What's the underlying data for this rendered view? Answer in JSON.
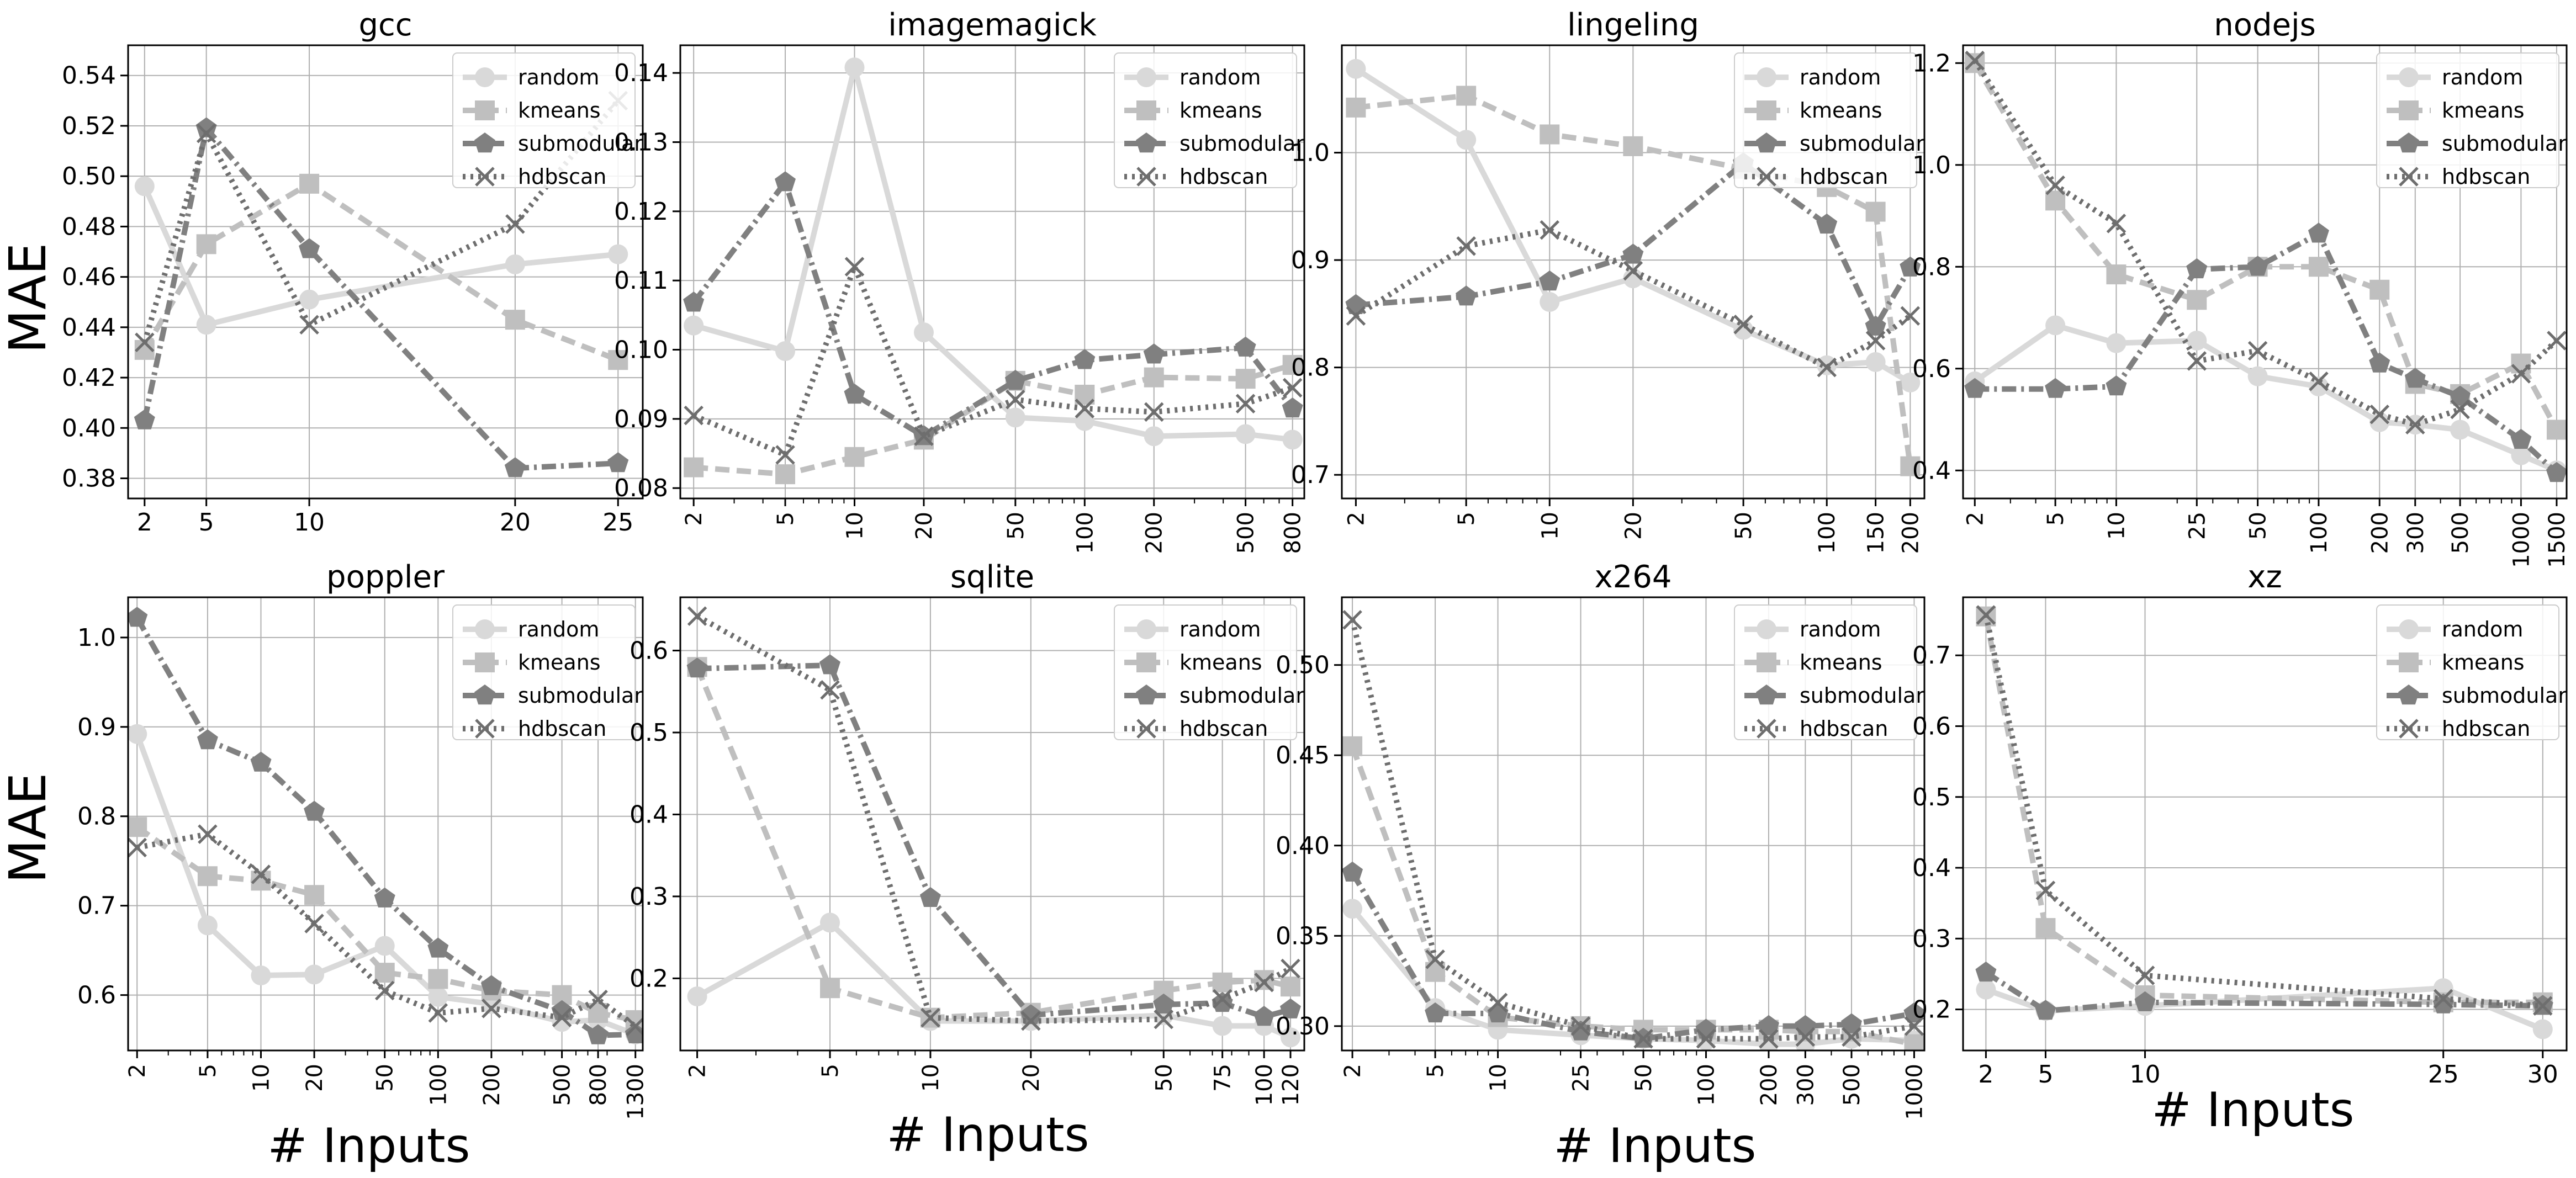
{
  "figure": {
    "ylabel": "MAE",
    "xlabel": "# Inputs"
  },
  "chart_data": [
    {
      "type": "line",
      "title": "gcc",
      "xscale": "linear",
      "xlim": [
        1.2,
        26.2
      ],
      "ylim": [
        0.372,
        0.552
      ],
      "xticks": [
        2,
        5,
        10,
        20,
        25
      ],
      "xtick_rotation": 0,
      "yticks": [
        0.38,
        0.4,
        0.42,
        0.44,
        0.46,
        0.48,
        0.5,
        0.52,
        0.54
      ],
      "ytick_decimals": 2,
      "grid": true,
      "legend": "top-right",
      "series": [
        {
          "name": "random",
          "x": [
            2,
            5,
            10,
            20,
            25
          ],
          "y": [
            0.496,
            0.441,
            0.451,
            0.465,
            0.469
          ]
        },
        {
          "name": "kmeans",
          "x": [
            2,
            5,
            10,
            20,
            25
          ],
          "y": [
            0.431,
            0.473,
            0.497,
            0.443,
            0.427
          ]
        },
        {
          "name": "submodular",
          "x": [
            2,
            5,
            10,
            20,
            25
          ],
          "y": [
            0.403,
            0.519,
            0.471,
            0.384,
            0.386
          ]
        },
        {
          "name": "hdbscan",
          "x": [
            2,
            5,
            10,
            20,
            25
          ],
          "y": [
            0.434,
            0.517,
            0.441,
            0.481,
            0.53
          ]
        }
      ]
    },
    {
      "type": "line",
      "title": "imagemagick",
      "xscale": "log",
      "xlim": [
        1.75,
        900
      ],
      "ylim": [
        0.0785,
        0.144
      ],
      "xticks": [
        2,
        5,
        10,
        20,
        50,
        100,
        200,
        500,
        800
      ],
      "xtick_rotation": -90,
      "yticks": [
        0.08,
        0.09,
        0.1,
        0.11,
        0.12,
        0.13,
        0.14
      ],
      "ytick_decimals": 2,
      "grid": true,
      "legend": "top-right",
      "series": [
        {
          "name": "random",
          "x": [
            2,
            5,
            10,
            20,
            50,
            100,
            200,
            500,
            800
          ],
          "y": [
            0.1035,
            0.0998,
            0.1408,
            0.1025,
            0.0902,
            0.0897,
            0.0875,
            0.0878,
            0.087
          ]
        },
        {
          "name": "kmeans",
          "x": [
            2,
            5,
            10,
            20,
            50,
            100,
            200,
            500,
            800
          ],
          "y": [
            0.083,
            0.082,
            0.0845,
            0.087,
            0.0955,
            0.0935,
            0.096,
            0.0958,
            0.0978
          ]
        },
        {
          "name": "submodular",
          "x": [
            2,
            5,
            10,
            20,
            50,
            100,
            200,
            500,
            800
          ],
          "y": [
            0.1068,
            0.1242,
            0.0935,
            0.0875,
            0.0955,
            0.0985,
            0.0993,
            0.1003,
            0.0915
          ]
        },
        {
          "name": "hdbscan",
          "x": [
            2,
            5,
            10,
            20,
            50,
            100,
            200,
            500,
            800
          ],
          "y": [
            0.0905,
            0.0848,
            0.112,
            0.0875,
            0.0928,
            0.0915,
            0.091,
            0.0922,
            0.0945
          ]
        }
      ]
    },
    {
      "type": "line",
      "title": "lingeling",
      "xscale": "log",
      "xlim": [
        1.78,
        225
      ],
      "ylim": [
        0.678,
        1.1
      ],
      "xticks": [
        2,
        5,
        10,
        20,
        50,
        100,
        150,
        200
      ],
      "xtick_rotation": -90,
      "yticks": [
        0.7,
        0.8,
        0.9,
        1.0
      ],
      "ytick_decimals": 1,
      "grid": true,
      "legend": "top-right",
      "series": [
        {
          "name": "random",
          "x": [
            2,
            5,
            10,
            20,
            50,
            100,
            150,
            200
          ],
          "y": [
            1.078,
            1.012,
            0.861,
            0.883,
            0.835,
            0.802,
            0.805,
            0.786
          ]
        },
        {
          "name": "kmeans",
          "x": [
            2,
            5,
            10,
            20,
            50,
            100,
            150,
            200
          ],
          "y": [
            1.042,
            1.053,
            1.017,
            1.006,
            0.985,
            0.968,
            0.945,
            0.708
          ]
        },
        {
          "name": "submodular",
          "x": [
            2,
            5,
            10,
            20,
            50,
            100,
            150,
            200
          ],
          "y": [
            0.858,
            0.866,
            0.88,
            0.905,
            0.99,
            0.933,
            0.838,
            0.893
          ]
        },
        {
          "name": "hdbscan",
          "x": [
            2,
            5,
            10,
            20,
            50,
            100,
            150,
            200
          ],
          "y": [
            0.848,
            0.913,
            0.928,
            0.89,
            0.84,
            0.8,
            0.825,
            0.848
          ]
        }
      ]
    },
    {
      "type": "line",
      "title": "nodejs",
      "xscale": "log",
      "xlim": [
        1.75,
        1680
      ],
      "ylim": [
        0.345,
        1.235
      ],
      "xticks": [
        2,
        5,
        10,
        25,
        50,
        100,
        200,
        300,
        500,
        1000,
        1500
      ],
      "xtick_rotation": -90,
      "yticks": [
        0.4,
        0.6,
        0.8,
        1.0,
        1.2
      ],
      "ytick_decimals": 1,
      "grid": true,
      "legend": "top-right",
      "series": [
        {
          "name": "random",
          "x": [
            2,
            5,
            10,
            25,
            50,
            100,
            200,
            300,
            500,
            1000,
            1500
          ],
          "y": [
            0.575,
            0.685,
            0.65,
            0.655,
            0.585,
            0.565,
            0.495,
            0.49,
            0.48,
            0.43,
            0.4
          ]
        },
        {
          "name": "kmeans",
          "x": [
            2,
            5,
            10,
            25,
            50,
            100,
            200,
            300,
            500,
            1000,
            1500
          ],
          "y": [
            1.2,
            0.93,
            0.785,
            0.735,
            0.8,
            0.8,
            0.755,
            0.57,
            0.55,
            0.61,
            0.48
          ]
        },
        {
          "name": "submodular",
          "x": [
            2,
            5,
            10,
            25,
            50,
            100,
            200,
            300,
            500,
            1000,
            1500
          ],
          "y": [
            0.56,
            0.56,
            0.565,
            0.795,
            0.8,
            0.865,
            0.61,
            0.58,
            0.545,
            0.46,
            0.395
          ]
        },
        {
          "name": "hdbscan",
          "x": [
            2,
            5,
            10,
            25,
            50,
            100,
            200,
            300,
            500,
            1000,
            1500
          ],
          "y": [
            1.205,
            0.96,
            0.885,
            0.615,
            0.635,
            0.575,
            0.51,
            0.49,
            0.52,
            0.59,
            0.655
          ]
        }
      ]
    },
    {
      "type": "line",
      "title": "poppler",
      "xscale": "log",
      "xlim": [
        1.78,
        1430
      ],
      "ylim": [
        0.538,
        1.045
      ],
      "xticks": [
        2,
        5,
        10,
        20,
        50,
        100,
        200,
        500,
        800,
        1300
      ],
      "xtick_rotation": -90,
      "yticks": [
        0.6,
        0.7,
        0.8,
        0.9,
        1.0
      ],
      "ytick_decimals": 1,
      "grid": true,
      "legend": "top-right",
      "series": [
        {
          "name": "random",
          "x": [
            2,
            5,
            10,
            20,
            50,
            100,
            200,
            500,
            800,
            1300
          ],
          "y": [
            0.892,
            0.678,
            0.622,
            0.623,
            0.655,
            0.598,
            0.59,
            0.57,
            0.572,
            0.556
          ]
        },
        {
          "name": "kmeans",
          "x": [
            2,
            5,
            10,
            20,
            50,
            100,
            200,
            500,
            800,
            1300
          ],
          "y": [
            0.788,
            0.733,
            0.728,
            0.712,
            0.625,
            0.618,
            0.605,
            0.6,
            0.58,
            0.572
          ]
        },
        {
          "name": "submodular",
          "x": [
            2,
            5,
            10,
            20,
            50,
            100,
            200,
            500,
            800,
            1300
          ],
          "y": [
            1.022,
            0.885,
            0.86,
            0.805,
            0.708,
            0.652,
            0.61,
            0.582,
            0.555,
            0.556
          ]
        },
        {
          "name": "hdbscan",
          "x": [
            2,
            5,
            10,
            20,
            50,
            100,
            200,
            500,
            800,
            1300
          ],
          "y": [
            0.765,
            0.78,
            0.735,
            0.68,
            0.605,
            0.58,
            0.585,
            0.575,
            0.595,
            0.565
          ]
        }
      ]
    },
    {
      "type": "line",
      "title": "sqlite",
      "xscale": "log",
      "xlim": [
        1.78,
        132
      ],
      "ylim": [
        0.112,
        0.665
      ],
      "xticks": [
        2,
        5,
        10,
        20,
        50,
        75,
        100,
        120
      ],
      "xtick_rotation": -90,
      "yticks": [
        0.2,
        0.3,
        0.4,
        0.5,
        0.6
      ],
      "ytick_decimals": 1,
      "grid": true,
      "legend": "top-right",
      "series": [
        {
          "name": "random",
          "x": [
            2,
            5,
            10,
            20,
            50,
            75,
            100,
            120
          ],
          "y": [
            0.178,
            0.268,
            0.148,
            0.148,
            0.155,
            0.142,
            0.142,
            0.128
          ]
        },
        {
          "name": "kmeans",
          "x": [
            2,
            5,
            10,
            20,
            50,
            75,
            100,
            120
          ],
          "y": [
            0.58,
            0.188,
            0.152,
            0.158,
            0.185,
            0.195,
            0.198,
            0.19
          ]
        },
        {
          "name": "submodular",
          "x": [
            2,
            5,
            10,
            20,
            50,
            75,
            100,
            120
          ],
          "y": [
            0.578,
            0.582,
            0.298,
            0.155,
            0.168,
            0.17,
            0.153,
            0.162
          ]
        },
        {
          "name": "hdbscan",
          "x": [
            2,
            5,
            10,
            20,
            50,
            75,
            100,
            120
          ],
          "y": [
            0.642,
            0.552,
            0.152,
            0.148,
            0.15,
            0.175,
            0.195,
            0.212
          ]
        }
      ]
    },
    {
      "type": "line",
      "title": "x264",
      "xscale": "log",
      "xlim": [
        1.78,
        1120
      ],
      "ylim": [
        0.2865,
        0.5375
      ],
      "xticks": [
        2,
        5,
        10,
        25,
        50,
        100,
        200,
        300,
        500,
        1000
      ],
      "xtick_rotation": -90,
      "yticks": [
        0.3,
        0.35,
        0.4,
        0.45,
        0.5
      ],
      "ytick_decimals": 2,
      "grid": true,
      "legend": "top-right",
      "series": [
        {
          "name": "random",
          "x": [
            2,
            5,
            10,
            25,
            50,
            100,
            200,
            300,
            500,
            1000
          ],
          "y": [
            0.365,
            0.31,
            0.298,
            0.295,
            0.293,
            0.292,
            0.29,
            0.29,
            0.293,
            0.292
          ]
        },
        {
          "name": "kmeans",
          "x": [
            2,
            5,
            10,
            25,
            50,
            100,
            200,
            300,
            500,
            1000
          ],
          "y": [
            0.455,
            0.33,
            0.305,
            0.3,
            0.298,
            0.298,
            0.298,
            0.297,
            0.297,
            0.29
          ]
        },
        {
          "name": "submodular",
          "x": [
            2,
            5,
            10,
            25,
            50,
            100,
            200,
            300,
            500,
            1000
          ],
          "y": [
            0.385,
            0.307,
            0.307,
            0.297,
            0.293,
            0.298,
            0.3,
            0.3,
            0.301,
            0.307
          ]
        },
        {
          "name": "hdbscan",
          "x": [
            2,
            5,
            10,
            25,
            50,
            100,
            200,
            300,
            500,
            1000
          ],
          "y": [
            0.525,
            0.337,
            0.313,
            0.3,
            0.293,
            0.293,
            0.293,
            0.294,
            0.294,
            0.3
          ]
        }
      ]
    },
    {
      "type": "line",
      "title": "xz",
      "xscale": "linear",
      "xlim": [
        0.85,
        31.2
      ],
      "ylim": [
        0.142,
        0.782
      ],
      "xticks": [
        2,
        5,
        10,
        25,
        30
      ],
      "xtick_rotation": 0,
      "yticks": [
        0.2,
        0.3,
        0.4,
        0.5,
        0.6,
        0.7
      ],
      "ytick_decimals": 1,
      "grid": true,
      "legend": "top-right",
      "series": [
        {
          "name": "random",
          "x": [
            2,
            5,
            10,
            25,
            30
          ],
          "y": [
            0.228,
            0.198,
            0.205,
            0.23,
            0.172
          ]
        },
        {
          "name": "kmeans",
          "x": [
            2,
            5,
            10,
            25,
            30
          ],
          "y": [
            0.755,
            0.315,
            0.22,
            0.21,
            0.21
          ]
        },
        {
          "name": "submodular",
          "x": [
            2,
            5,
            10,
            25,
            30
          ],
          "y": [
            0.252,
            0.198,
            0.21,
            0.207,
            0.205
          ]
        },
        {
          "name": "hdbscan",
          "x": [
            2,
            5,
            10,
            25,
            30
          ],
          "y": [
            0.757,
            0.368,
            0.248,
            0.215,
            0.205
          ]
        }
      ]
    }
  ],
  "series_styles": {
    "random": {
      "color": "#d9d9d9",
      "marker": "circle",
      "dash": "none"
    },
    "kmeans": {
      "color": "#bfbfbf",
      "marker": "square",
      "dash": "26 13"
    },
    "submodular": {
      "color": "#808080",
      "marker": "pentagon",
      "dash": "26 9 5 9"
    },
    "hdbscan": {
      "color": "#6e6e6e",
      "marker": "x",
      "dash": "5 9"
    }
  },
  "colors": {
    "grid": "#b0b0b0",
    "axes": "#000000",
    "background": "#ffffff"
  }
}
